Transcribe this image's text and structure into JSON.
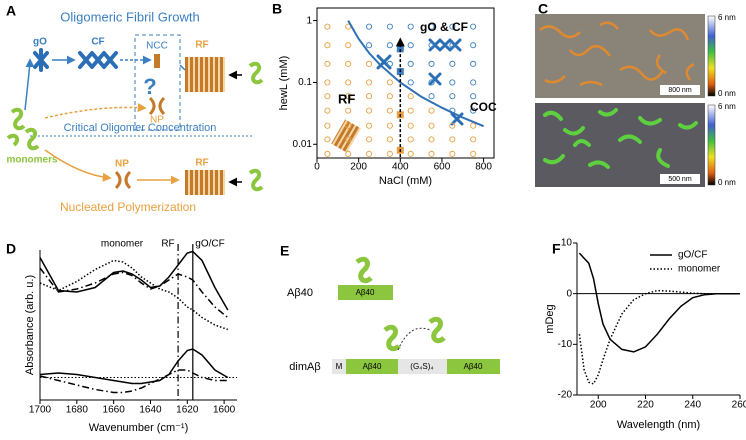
{
  "figure": {
    "A": {
      "label": "A",
      "title": "Oligomeric Fibril Growth",
      "go": "gO",
      "cf": "CF",
      "ncc": "NCC",
      "question": "?",
      "np_top": "NP",
      "rf_top": "RF",
      "coc": "Critical Oligomer Concentration",
      "monomers": "monomers",
      "np_bottom": "NP",
      "rf_bottom": "RF",
      "bottom_title": "Nucleated Polymerization"
    },
    "C": {
      "label": "C",
      "top_scale_max": "6 nm",
      "top_scale_min": "0 nm",
      "top_scalebar": "800 nm",
      "bottom_scale_max": "6 nm",
      "bottom_scale_min": "0 nm",
      "bottom_scalebar": "500 nm"
    },
    "E": {
      "label": "E",
      "monomer_label": "Aβ40",
      "monomer_box": "Aβ40",
      "dimer_label": "dimAβ",
      "met": "M",
      "first_box": "Aβ40",
      "linker": "(G₄S)₄",
      "second_box": "Aβ40"
    }
  },
  "chart_data": [
    {
      "type": "scatter",
      "panel": "B",
      "xlabel": "NaCl (mM)",
      "ylabel": "hewL (mM)",
      "ylog": true,
      "frame": "box",
      "xlim": [
        0,
        850
      ],
      "xticks": [
        0,
        200,
        400,
        600,
        800
      ],
      "ylim": [
        0.006,
        1.6
      ],
      "yticks": [
        0.01,
        0.1,
        1
      ],
      "series": [
        {
          "name": "RF",
          "color": "#e8a040",
          "marker": "circle",
          "x": [
            50,
            50,
            50,
            50,
            50,
            50,
            50,
            50,
            50,
            150,
            150,
            150,
            150,
            150,
            150,
            150,
            150,
            150,
            250,
            250,
            250,
            250,
            250,
            250,
            250,
            350,
            350,
            350,
            350,
            350,
            350,
            450,
            450,
            450,
            450,
            450,
            550,
            550,
            550,
            550,
            650,
            650,
            650,
            750,
            750,
            750
          ],
          "values": [
            0.007,
            0.012,
            0.02,
            0.035,
            0.06,
            0.1,
            0.2,
            0.4,
            0.8,
            0.007,
            0.012,
            0.02,
            0.035,
            0.06,
            0.1,
            0.2,
            0.4,
            0.8,
            0.007,
            0.012,
            0.02,
            0.035,
            0.06,
            0.1,
            0.2,
            0.007,
            0.012,
            0.02,
            0.035,
            0.06,
            0.1,
            0.007,
            0.012,
            0.02,
            0.035,
            0.06,
            0.007,
            0.012,
            0.02,
            0.035,
            0.007,
            0.012,
            0.02,
            0.007,
            0.012,
            0.02
          ]
        },
        {
          "name": "gO & CF",
          "color": "#3a7fc1",
          "marker": "circle",
          "x": [
            250,
            250,
            350,
            350,
            350,
            450,
            450,
            450,
            450,
            550,
            550,
            550,
            550,
            550,
            650,
            650,
            650,
            650,
            650,
            650,
            750,
            750,
            750,
            750,
            750,
            750
          ],
          "values": [
            0.4,
            0.8,
            0.2,
            0.4,
            0.8,
            0.1,
            0.2,
            0.4,
            0.8,
            0.06,
            0.1,
            0.2,
            0.4,
            0.8,
            0.035,
            0.06,
            0.1,
            0.2,
            0.4,
            0.8,
            0.035,
            0.06,
            0.1,
            0.2,
            0.4,
            0.8
          ]
        },
        {
          "name": "COC",
          "color": "#2f6fb5",
          "marker": "line",
          "x": [
            150,
            200,
            250,
            300,
            400,
            500,
            600,
            700,
            800
          ],
          "values": [
            1.0,
            0.51,
            0.3,
            0.197,
            0.1,
            0.059,
            0.039,
            0.027,
            0.0196
          ]
        },
        {
          "color": "#e8a040",
          "marker": "square",
          "x": [
            400,
            400
          ],
          "values": [
            0.008,
            0.03
          ]
        },
        {
          "color": "#3a7fc1",
          "marker": "square",
          "x": [
            400,
            400
          ],
          "values": [
            0.15,
            0.35
          ]
        },
        {
          "color": "#000000",
          "marker": "arrow",
          "x": [
            400,
            400
          ],
          "values": [
            0.0062,
            0.5
          ]
        }
      ]
    },
    {
      "type": "line",
      "panel": "D",
      "xlabel": "Wavenumber (cm⁻¹)",
      "ylabel": "Absorbance (arb. u.)",
      "frame": "axes",
      "xlim": [
        1700,
        1593
      ],
      "xticks": [
        1700,
        1680,
        1660,
        1640,
        1620,
        1600
      ],
      "ylim": [
        0,
        1
      ],
      "x": [
        1700,
        1690,
        1680,
        1670,
        1660,
        1655,
        1650,
        1645,
        1640,
        1635,
        1630,
        1625,
        1620,
        1617,
        1612,
        1605,
        1598
      ],
      "hline": {
        "y": 0.15,
        "style": "dotted"
      },
      "vlines": [
        {
          "x": 1617,
          "style": "solid"
        },
        {
          "x": 1625,
          "style": "dashdot"
        }
      ],
      "series": [
        {
          "name": "monomer",
          "color": "#000000",
          "style": "dotted",
          "values": [
            0.78,
            0.73,
            0.79,
            0.87,
            0.93,
            0.92,
            0.88,
            0.82,
            0.78,
            0.74,
            0.72,
            0.68,
            0.62,
            0.6,
            0.55,
            0.5,
            0.47
          ]
        },
        {
          "name": "RF",
          "color": "#000000",
          "style": "dashdot",
          "values": [
            0.88,
            0.72,
            0.74,
            0.78,
            0.84,
            0.85,
            0.83,
            0.78,
            0.74,
            0.76,
            0.8,
            0.84,
            0.82,
            0.8,
            0.72,
            0.62,
            0.55
          ]
        },
        {
          "name": "gO/CF",
          "color": "#000000",
          "style": "solid",
          "values": [
            0.95,
            0.73,
            0.72,
            0.75,
            0.85,
            0.86,
            0.84,
            0.8,
            0.75,
            0.76,
            0.82,
            0.9,
            0.98,
            0.99,
            0.93,
            0.75,
            0.6
          ]
        },
        {
          "color": "#000000",
          "style": "solid",
          "values": [
            0.17,
            0.18,
            0.17,
            0.15,
            0.13,
            0.12,
            0.11,
            0.11,
            0.12,
            0.13,
            0.17,
            0.26,
            0.33,
            0.34,
            0.3,
            0.2,
            0.15
          ]
        },
        {
          "color": "#000000",
          "style": "dashdot",
          "values": [
            0.16,
            0.13,
            0.1,
            0.07,
            0.05,
            0.05,
            0.06,
            0.08,
            0.11,
            0.14,
            0.17,
            0.2,
            0.2,
            0.18,
            0.15,
            0.13,
            0.13
          ]
        }
      ]
    },
    {
      "type": "line",
      "panel": "F",
      "xlabel": "Wavelength (nm)",
      "ylabel": "mDeg",
      "frame": "axes",
      "legend": "top-right",
      "xlim": [
        191,
        260
      ],
      "xticks": [
        200,
        220,
        240,
        260
      ],
      "ylim": [
        -20,
        10
      ],
      "yticks": [
        -20,
        -10,
        0,
        10
      ],
      "x": [
        192,
        194,
        196,
        198,
        200,
        202,
        205,
        210,
        215,
        220,
        225,
        230,
        235,
        240,
        245,
        250,
        255,
        260
      ],
      "hline": {
        "y": 0,
        "style": "solid"
      },
      "series": [
        {
          "name": "gO/CF",
          "color": "#000000",
          "style": "solid",
          "values": [
            8,
            7,
            6,
            3,
            -2,
            -6,
            -9,
            -11,
            -11.5,
            -10.5,
            -8,
            -5,
            -2.5,
            -0.8,
            -0.2,
            0,
            0,
            0
          ]
        },
        {
          "name": "monomer",
          "color": "#000000",
          "style": "dotted",
          "values": [
            -8,
            -15,
            -17.5,
            -17.8,
            -16,
            -13,
            -9,
            -4,
            -1.2,
            0,
            0.6,
            0.5,
            0.3,
            0.1,
            0,
            0,
            0,
            0
          ]
        }
      ]
    }
  ]
}
